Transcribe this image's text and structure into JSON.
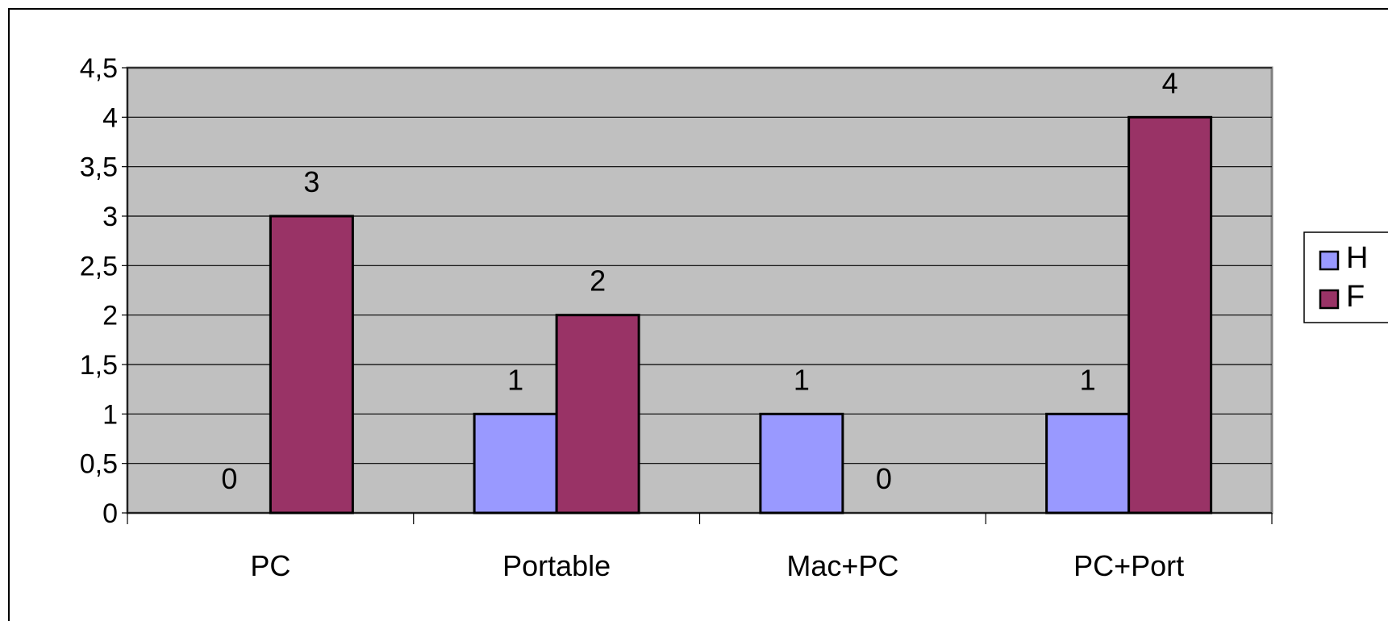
{
  "chart_data": {
    "type": "bar",
    "categories": [
      "PC",
      "Portable",
      "Mac+PC",
      "PC+Port"
    ],
    "series": [
      {
        "name": "H",
        "values": [
          0,
          1,
          1,
          1
        ],
        "color": "#9999ff"
      },
      {
        "name": "F",
        "values": [
          3,
          2,
          0,
          4
        ],
        "color": "#993366"
      }
    ],
    "data_labels": [
      [
        "0",
        "1",
        "1",
        "1"
      ],
      [
        "3",
        "2",
        "0",
        "4"
      ]
    ],
    "y_ticks": [
      "0",
      "0,5",
      "1",
      "1,5",
      "2",
      "2,5",
      "3",
      "3,5",
      "4",
      "4,5"
    ],
    "ylim": [
      0,
      4.5
    ],
    "title": "",
    "xlabel": "",
    "ylabel": "",
    "grid": true,
    "legend_position": "right",
    "plot_background": "#c0c0c0",
    "frame_color": "#000000"
  }
}
